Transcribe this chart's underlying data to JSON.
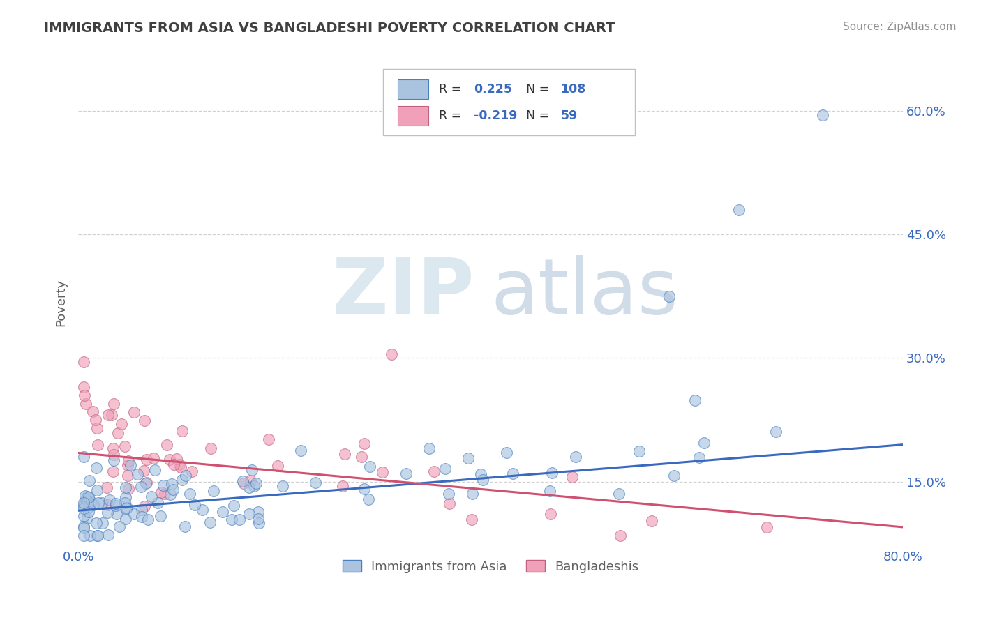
{
  "title": "IMMIGRANTS FROM ASIA VS BANGLADESHI POVERTY CORRELATION CHART",
  "source_text": "Source: ZipAtlas.com",
  "ylabel": "Poverty",
  "x_min": 0.0,
  "x_max": 0.8,
  "y_min": 0.07,
  "y_max": 0.665,
  "x_tick_positions": [
    0.0,
    0.2,
    0.4,
    0.6,
    0.8
  ],
  "x_tick_labels": [
    "0.0%",
    "",
    "",
    "",
    "80.0%"
  ],
  "y_tick_positions": [
    0.15,
    0.3,
    0.45,
    0.6
  ],
  "y_tick_labels": [
    "15.0%",
    "30.0%",
    "45.0%",
    "60.0%"
  ],
  "color_asia": "#aac4e0",
  "color_bangla": "#f0a0b8",
  "line_color_asia": "#3a6abf",
  "line_color_bangla": "#d05070",
  "marker_edge_asia": "#4a80c0",
  "marker_edge_bangla": "#c06080",
  "title_color": "#404040",
  "source_color": "#909090",
  "axis_label_color": "#606060",
  "tick_color": "#3a6abf",
  "grid_color": "#cccccc",
  "legend_box_edge": "#c0c0c0",
  "asia_line_start_y": 0.115,
  "asia_line_end_y": 0.195,
  "bangla_line_start_y": 0.185,
  "bangla_line_end_y": 0.095
}
